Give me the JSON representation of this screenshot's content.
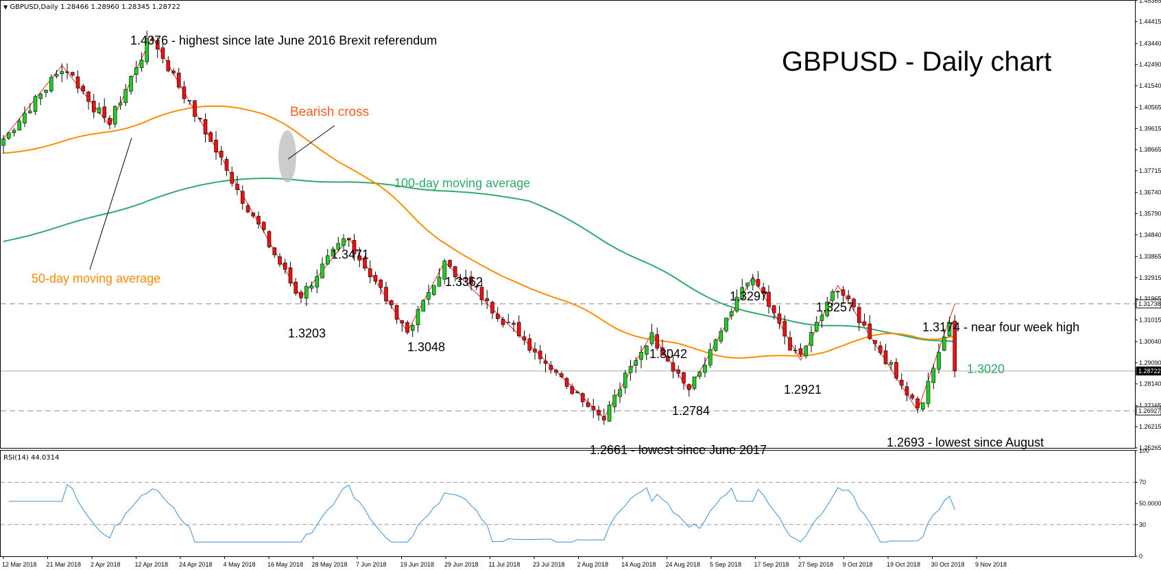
{
  "header": {
    "symbol_info": "GBPUSD,Daily  1.28466 1.28960 1.28345 1.28722",
    "rsi_label": "RSI(14) 44.0314"
  },
  "colors": {
    "bull": "#22cc22",
    "bear": "#ee1111",
    "ma50": "#ff8c00",
    "ma100": "#2eaa6a",
    "rsi": "#3a8fd8",
    "zigzag": "#ee2222",
    "grid": "#b8b8b8"
  },
  "chart_data": [
    {
      "type": "candlestick",
      "title": "GBPUSD - Daily chart",
      "ylim": [
        1.25265,
        1.4536
      ],
      "y_ticks": [
        "1.45365",
        "1.44415",
        "1.43440",
        "1.42490",
        "1.41540",
        "1.40565",
        "1.39615",
        "1.38665",
        "1.37715",
        "1.36740",
        "1.35790",
        "1.34840",
        "1.33865",
        "1.32915",
        "1.31965",
        "1.31015",
        "1.30040",
        "1.29090",
        "1.28140",
        "1.27165",
        "1.26215",
        "1.25265"
      ],
      "x_ticks": [
        "12 Mar 2018",
        "21 Mar 2018",
        "2 Apr 2018",
        "12 Apr 2018",
        "24 Apr 2018",
        "4 May 2018",
        "16 May 2018",
        "28 May 2018",
        "7 Jun 2018",
        "19 Jun 2018",
        "29 Jun 2018",
        "11 Jul 2018",
        "23 Jul 2018",
        "2 Aug 2018",
        "14 Aug 2018",
        "24 Aug 2018",
        "5 Sep 2018",
        "17 Sep 2018",
        "27 Sep 2018",
        "9 Oct 2018",
        "19 Oct 2018",
        "30 Oct 2018",
        "9 Nov 2018"
      ],
      "price_tags": [
        {
          "label": "1.31738",
          "value": 1.31738,
          "style": "outline"
        },
        {
          "label": "1.28722",
          "value": 1.28722,
          "style": "filled"
        },
        {
          "label": "1.26927",
          "value": 1.26927,
          "style": "outline"
        }
      ],
      "horizontal_lines": [
        1.3174,
        1.2693
      ],
      "swing_points": [
        {
          "value": 1.3916,
          "dir": "low"
        },
        {
          "value": 1.4245,
          "dir": "high"
        },
        {
          "value": 1.3975,
          "dir": "low"
        },
        {
          "value": 1.4376,
          "dir": "high"
        },
        {
          "value": 1.3203,
          "dir": "low"
        },
        {
          "value": 1.3471,
          "dir": "high"
        },
        {
          "value": 1.3048,
          "dir": "low"
        },
        {
          "value": 1.3362,
          "dir": "high"
        },
        {
          "value": 1.2661,
          "dir": "low"
        },
        {
          "value": 1.3042,
          "dir": "high"
        },
        {
          "value": 1.2784,
          "dir": "low"
        },
        {
          "value": 1.3297,
          "dir": "high"
        },
        {
          "value": 1.2921,
          "dir": "low"
        },
        {
          "value": 1.3257,
          "dir": "high"
        },
        {
          "value": 1.2693,
          "dir": "low"
        },
        {
          "value": 1.3174,
          "dir": "high"
        }
      ],
      "last_close": 1.28722,
      "series": [
        {
          "name": "50-day moving average",
          "last": 1.303
        },
        {
          "name": "100-day moving average",
          "last": 1.302
        }
      ]
    },
    {
      "type": "line",
      "ylim": [
        0,
        100
      ],
      "y_ticks": [
        "100",
        "70",
        "50.0000",
        "30",
        "0"
      ],
      "levels": [
        70,
        30
      ],
      "series": [
        {
          "name": "RSI(14)",
          "last": 44.0314
        }
      ]
    }
  ],
  "annotations": {
    "high_1_4376": "1.4376 - highest since late June 2016 Brexit referendum",
    "bearish_cross": "Bearish cross",
    "ma100_label": "100-day moving average",
    "ma50_label": "50-day moving average",
    "p_1_3471": "1.3471",
    "p_1_3362": "1.3362",
    "p_1_3203": "1.3203",
    "p_1_3048": "1.3048",
    "p_1_3297": "1.3297",
    "p_1_3257": "1.3257",
    "p_1_3042": "1.3042",
    "p_1_2921": "1.2921",
    "p_1_2784": "1.2784",
    "p_1_3174": "1.3174 - near four week high",
    "ma_value_1_3020": "1.3020",
    "low_1_2661": "1.2661 - lowest since June 2017",
    "low_1_2693": "1.2693 - lowest since August"
  }
}
